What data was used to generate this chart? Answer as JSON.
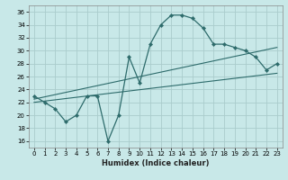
{
  "xlabel": "Humidex (Indice chaleur)",
  "background_color": "#c8e8e8",
  "grid_color": "#aacccc",
  "line_color": "#2d6b6b",
  "xlim": [
    -0.5,
    23.5
  ],
  "ylim": [
    15,
    37
  ],
  "xticks": [
    0,
    1,
    2,
    3,
    4,
    5,
    6,
    7,
    8,
    9,
    10,
    11,
    12,
    13,
    14,
    15,
    16,
    17,
    18,
    19,
    20,
    21,
    22,
    23
  ],
  "yticks": [
    16,
    18,
    20,
    22,
    24,
    26,
    28,
    30,
    32,
    34,
    36
  ],
  "main_x": [
    0,
    1,
    2,
    3,
    4,
    5,
    6,
    7,
    8,
    9,
    10,
    11,
    12,
    13,
    14,
    15,
    16,
    17,
    18,
    19,
    20,
    21,
    22,
    23
  ],
  "main_y": [
    23,
    22,
    21,
    19,
    20,
    23,
    23,
    16,
    20,
    29,
    25,
    31,
    34,
    35.5,
    35.5,
    35,
    33.5,
    31,
    31,
    30.5,
    30,
    29,
    27,
    28
  ],
  "trend1_x": [
    0,
    23
  ],
  "trend1_y": [
    22.5,
    30.5
  ],
  "trend2_x": [
    0,
    23
  ],
  "trend2_y": [
    22.0,
    26.5
  ]
}
